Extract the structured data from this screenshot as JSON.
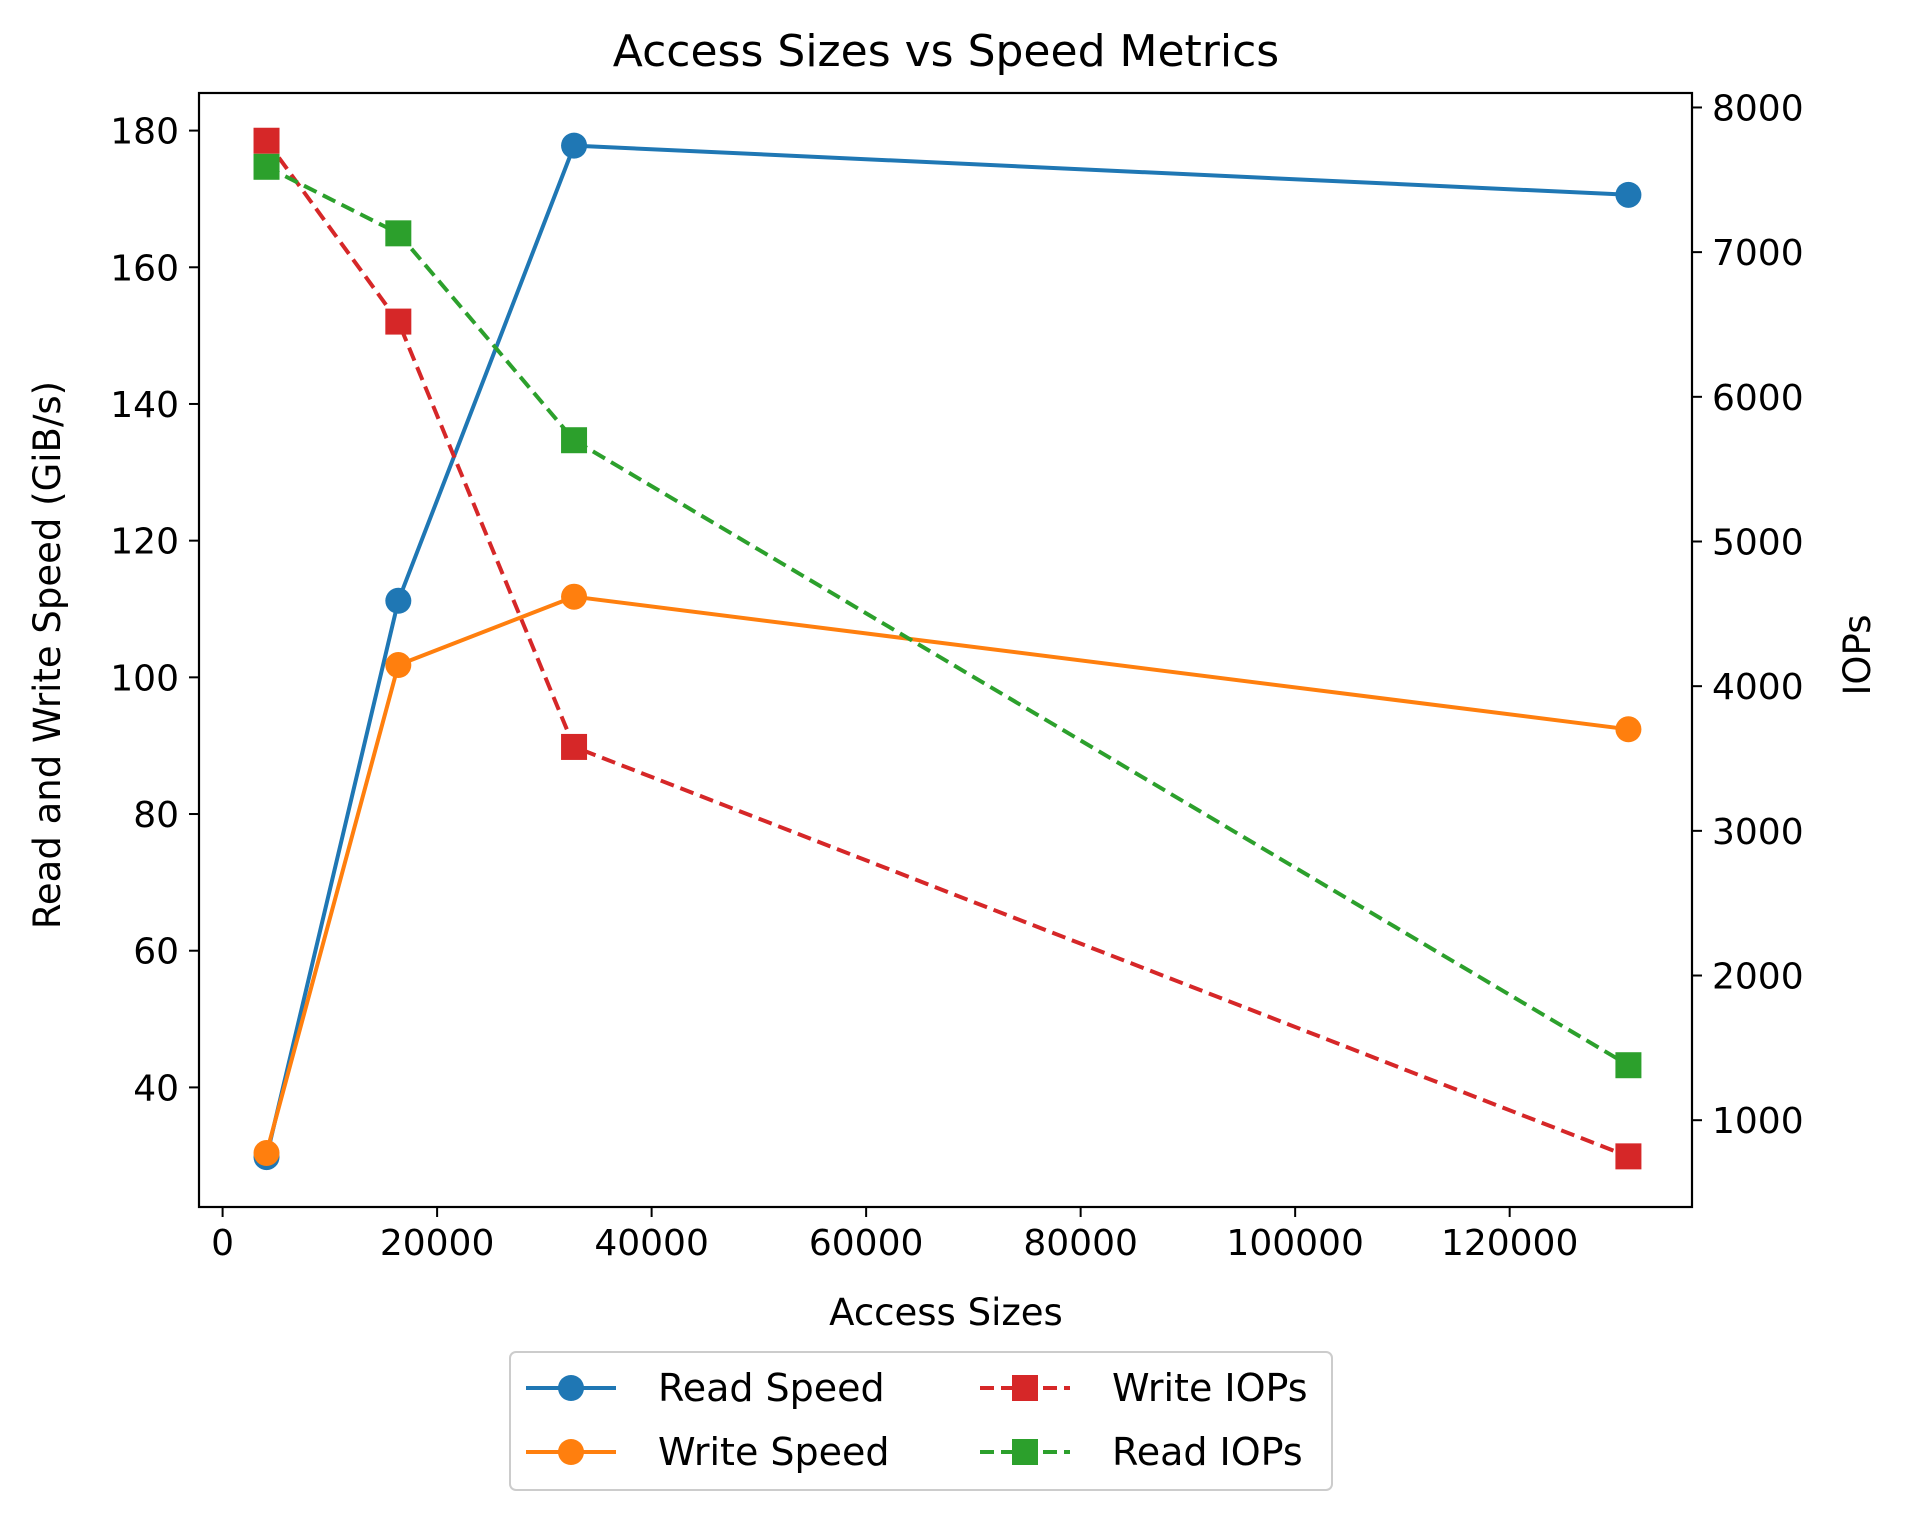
{
  "chart_data": {
    "type": "line",
    "title": "Access Sizes vs Speed Metrics",
    "xlabel": "Access Sizes",
    "ylabel": "Read and Write Speed (GiB/s)",
    "y2label": "IOPs",
    "x": [
      4096,
      16384,
      32768,
      131072
    ],
    "xlim": [
      -2200,
      137000
    ],
    "ylim": [
      22.5,
      185.5
    ],
    "y2lim": [
      400,
      8100
    ],
    "xticks": [
      0,
      20000,
      40000,
      60000,
      80000,
      100000,
      120000
    ],
    "xtick_labels": [
      "0",
      "20000",
      "40000",
      "60000",
      "80000",
      "100000",
      "120000"
    ],
    "yticks": [
      40,
      60,
      80,
      100,
      120,
      140,
      160,
      180
    ],
    "ytick_labels": [
      "40",
      "60",
      "80",
      "100",
      "120",
      "140",
      "160",
      "180"
    ],
    "y2ticks": [
      1000,
      2000,
      3000,
      4000,
      5000,
      6000,
      7000,
      8000
    ],
    "y2tick_labels": [
      "1000",
      "2000",
      "3000",
      "4000",
      "5000",
      "6000",
      "7000",
      "8000"
    ],
    "series": [
      {
        "name": "Read Speed",
        "axis": "left",
        "color": "#1f77b4",
        "style": "solid",
        "marker": "circle",
        "values": [
          29.8,
          111.2,
          177.8,
          170.6
        ]
      },
      {
        "name": "Write Speed",
        "axis": "left",
        "color": "#ff7f0e",
        "style": "solid",
        "marker": "circle",
        "values": [
          30.4,
          101.8,
          111.8,
          92.4
        ]
      },
      {
        "name": "Write IOPs",
        "axis": "right",
        "color": "#d62728",
        "style": "dashed",
        "marker": "square",
        "values": [
          7770,
          6520,
          3580,
          750
        ]
      },
      {
        "name": "Read IOPs",
        "axis": "right",
        "color": "#2ca02c",
        "style": "dashed",
        "marker": "square",
        "values": [
          7590,
          7130,
          5700,
          1380
        ]
      }
    ],
    "legend": {
      "position": "bottom-center",
      "columns": 2
    },
    "grid": false
  }
}
